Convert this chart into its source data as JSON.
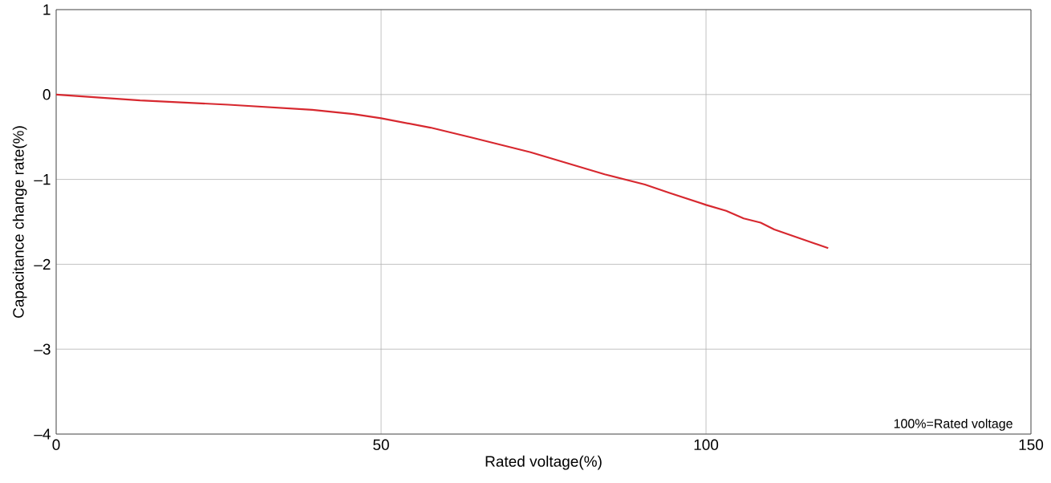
{
  "chart_data": {
    "type": "line",
    "xlabel": "Rated voltage(%)",
    "ylabel": "Capacitance change rate(%)",
    "x": [
      0,
      12.9,
      26.5,
      39.4,
      45.7,
      50,
      57.6,
      64.1,
      73.0,
      84.4,
      90.6,
      94.4,
      100,
      103.1,
      105.8,
      108.4,
      110.5,
      118.8
    ],
    "series": [
      {
        "color": "#d7282f",
        "values": [
          0,
          -0.07,
          -0.12,
          -0.18,
          -0.23,
          -0.28,
          -0.39,
          -0.51,
          -0.68,
          -0.94,
          -1.06,
          -1.16,
          -1.3,
          -1.37,
          -1.46,
          -1.51,
          -1.59,
          -1.81
        ]
      }
    ],
    "xlim": [
      0,
      150
    ],
    "xticks": [
      0,
      50,
      100,
      150
    ],
    "ylim": [
      -4,
      1
    ],
    "yticks": [
      {
        "value": -4,
        "label": "–4"
      },
      {
        "value": -3,
        "label": "–3"
      },
      {
        "value": -2,
        "label": "–2"
      },
      {
        "value": -1,
        "label": "–1"
      },
      0,
      1
    ],
    "grid": true,
    "line_style": "solid",
    "marker": "none",
    "annotations": [
      "100%=Rated voltage"
    ]
  }
}
